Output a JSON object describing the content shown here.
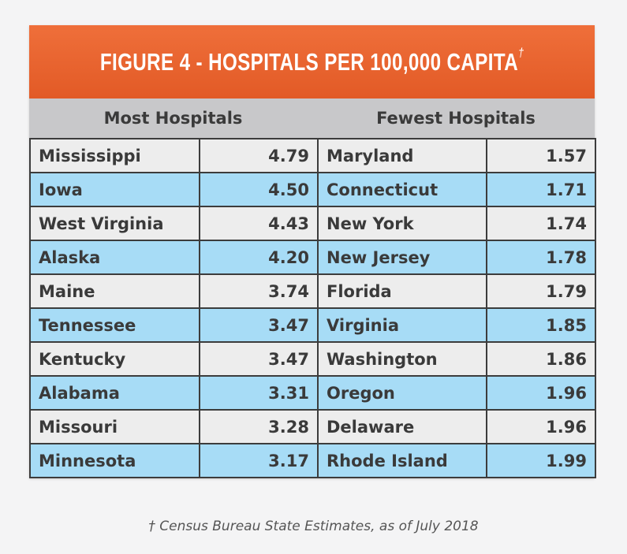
{
  "title": "FIGURE 4 - HOSPITALS PER 100,000 CAPITA",
  "title_mark": "†",
  "headers": {
    "most": "Most Hospitals",
    "fewest": "Fewest Hospitals"
  },
  "rows": [
    {
      "most_state": "Mississippi",
      "most_value": "4.79",
      "fewest_state": "Maryland",
      "fewest_value": "1.57"
    },
    {
      "most_state": "Iowa",
      "most_value": "4.50",
      "fewest_state": "Connecticut",
      "fewest_value": "1.71"
    },
    {
      "most_state": "West Virginia",
      "most_value": "4.43",
      "fewest_state": "New York",
      "fewest_value": "1.74"
    },
    {
      "most_state": "Alaska",
      "most_value": "4.20",
      "fewest_state": "New Jersey",
      "fewest_value": "1.78"
    },
    {
      "most_state": "Maine",
      "most_value": "3.74",
      "fewest_state": "Florida",
      "fewest_value": "1.79"
    },
    {
      "most_state": "Tennessee",
      "most_value": "3.47",
      "fewest_state": "Virginia",
      "fewest_value": "1.85"
    },
    {
      "most_state": "Kentucky",
      "most_value": "3.47",
      "fewest_state": "Washington",
      "fewest_value": "1.86"
    },
    {
      "most_state": "Alabama",
      "most_value": "3.31",
      "fewest_state": "Oregon",
      "fewest_value": "1.96"
    },
    {
      "most_state": "Missouri",
      "most_value": "3.28",
      "fewest_state": "Delaware",
      "fewest_value": "1.96"
    },
    {
      "most_state": "Minnesota",
      "most_value": "3.17",
      "fewest_state": "Rhode Island",
      "fewest_value": "1.99"
    }
  ],
  "footnote": "† Census Bureau State Estimates, as of July 2018",
  "colors": {
    "banner": "#e8622d",
    "header_row": "#c8c8ca",
    "row_gray": "#ededed",
    "row_blue": "#a7dcf6",
    "text": "#3a3a3a"
  }
}
